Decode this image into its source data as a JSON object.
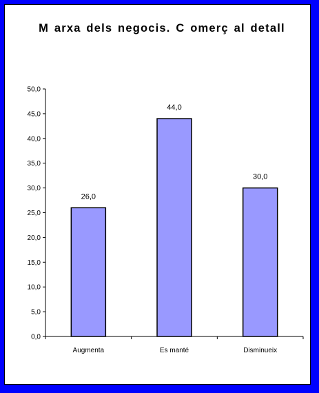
{
  "colors": {
    "frame_border": "#0000ff",
    "background": "#ffffff",
    "bar_fill": "#9999ff",
    "bar_stroke": "#000000"
  },
  "chart_data": {
    "type": "bar",
    "title": "M arxa dels negocis. C omerç al detall",
    "categories": [
      "Augmenta",
      "Es manté",
      "Disminueix"
    ],
    "values": [
      26.0,
      44.0,
      30.0
    ],
    "data_labels": [
      "26,0",
      "44,0",
      "30,0"
    ],
    "ylim": [
      0,
      50
    ],
    "ytick_labels": [
      "0,0",
      "5,0",
      "10,0",
      "15,0",
      "20,0",
      "25,0",
      "30,0",
      "35,0",
      "40,0",
      "45,0",
      "50,0"
    ],
    "xlabel": "",
    "ylabel": "",
    "grid": false,
    "legend": "none"
  }
}
